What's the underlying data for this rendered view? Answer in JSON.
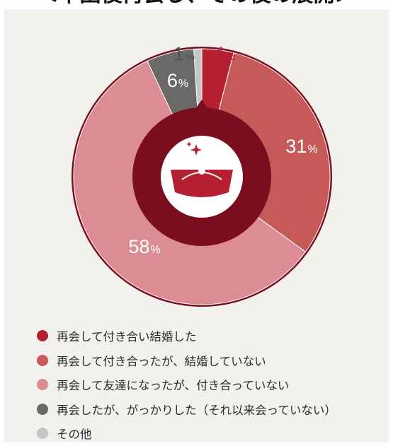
{
  "title": "＜卒園後再会し、その後の展開＞",
  "colors": {
    "background": "#f3f1ee",
    "inner_ring": "#7a0e1f",
    "icon_white": "#ffffff",
    "icon_red": "#b51f32"
  },
  "center_icon": "ring-box-icon",
  "chart_data": {
    "type": "pie",
    "variant": "donut",
    "title": "＜卒園後再会し、その後の展開＞",
    "unit": "%",
    "legend_position": "bottom",
    "slices": [
      {
        "label": "再会して付き合い結婚した",
        "value": 4,
        "value_text": "4",
        "color": "#b51f32"
      },
      {
        "label": "再会して付き合ったが、結婚していない",
        "value": 31,
        "value_text": "31",
        "color": "#c65a58"
      },
      {
        "label": "再会して友達になったが、付き合っていない",
        "value": 58,
        "value_text": "58",
        "color": "#dc8c93"
      },
      {
        "label": "再会したが、がっかりした（それ以来会っていない）",
        "value": 6,
        "value_text": "6",
        "color": "#6b6868"
      },
      {
        "label": "その他",
        "value": 1,
        "value_text": "1",
        "color": "#c5c5c5"
      }
    ]
  }
}
